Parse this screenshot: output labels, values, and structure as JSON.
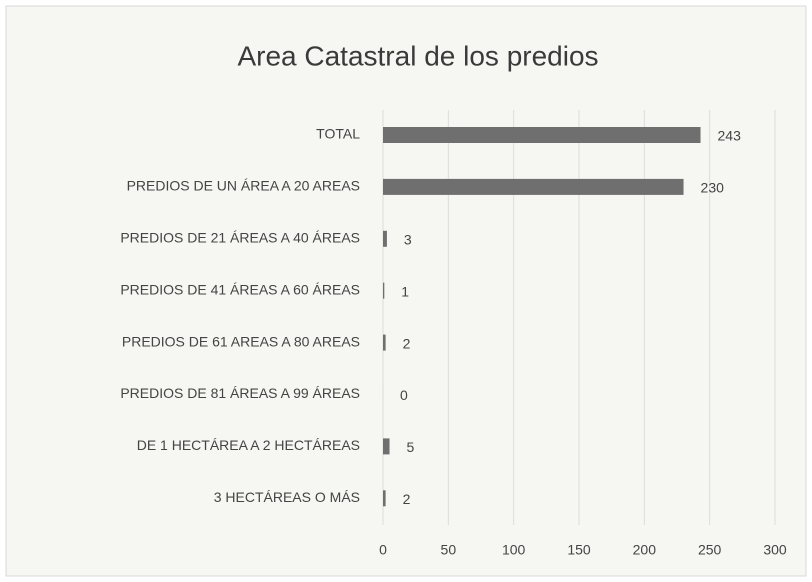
{
  "chart_data": {
    "type": "bar",
    "orientation": "horizontal",
    "title": "Area Catastral de los predios",
    "categories": [
      "TOTAL",
      "PREDIOS DE UN ÁREA A 20 AREAS",
      "PREDIOS DE 21 ÁREAS A 40 ÁREAS",
      "PREDIOS DE 41 ÁREAS A 60 ÁREAS",
      "PREDIOS DE 61 AREAS A 80 AREAS",
      "PREDIOS DE 81 ÁREAS A 99 ÁREAS",
      "DE 1 HECTÁREA A 2 HECTÁREAS",
      "3 HECTÁREAS O MÁS"
    ],
    "values": [
      243,
      230,
      3,
      1,
      2,
      0,
      5,
      2
    ],
    "color": "#6f6f6f",
    "xlim": [
      0,
      300
    ],
    "xticks": [
      0,
      50,
      100,
      150,
      200,
      250,
      300
    ],
    "grid": true
  }
}
